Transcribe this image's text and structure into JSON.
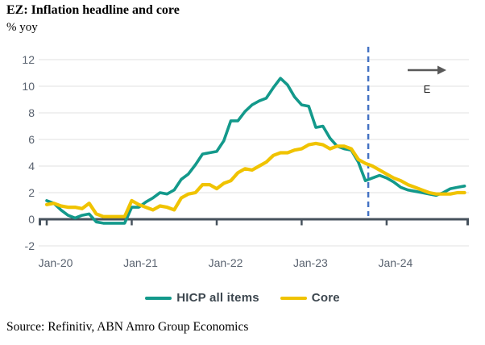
{
  "header": {
    "title": "EZ: Inflation headline and core",
    "unit_label": "% yoy"
  },
  "source": "Source: Refinitiv, ABN Amro Group Economics",
  "annotations": {
    "estimate_label": "E",
    "forecast_arrow_icon": "right-arrow"
  },
  "legend": [
    {
      "label": "HICP all items",
      "color": "#13998b"
    },
    {
      "label": "Core",
      "color": "#f0c300"
    }
  ],
  "colors": {
    "hicp_line": "#13998b",
    "core_line": "#f0c300",
    "axis": "#47525d",
    "grid": "#e7e7e7",
    "tick_label": "#5a6370",
    "forecast_divider": "#4472c4",
    "arrow": "#595959"
  },
  "chart_data": {
    "type": "line",
    "title": "EZ: Inflation headline and core",
    "ylabel": "% yoy",
    "ylim": [
      -2,
      13
    ],
    "y_ticks": [
      -2,
      0,
      2,
      4,
      6,
      8,
      10,
      12
    ],
    "grid": true,
    "legend_position": "bottom",
    "x_tick_labels": [
      "Jan-20",
      "Jan-21",
      "Jan-22",
      "Jan-23",
      "Jan-24"
    ],
    "x_labeled_indices": [
      0,
      12,
      24,
      36,
      48
    ],
    "forecast_divider_index": 45.4,
    "categories": [
      "Jan-20",
      "Feb-20",
      "Mar-20",
      "Apr-20",
      "May-20",
      "Jun-20",
      "Jul-20",
      "Aug-20",
      "Sep-20",
      "Oct-20",
      "Nov-20",
      "Dec-20",
      "Jan-21",
      "Feb-21",
      "Mar-21",
      "Apr-21",
      "May-21",
      "Jun-21",
      "Jul-21",
      "Aug-21",
      "Sep-21",
      "Oct-21",
      "Nov-21",
      "Dec-21",
      "Jan-22",
      "Feb-22",
      "Mar-22",
      "Apr-22",
      "May-22",
      "Jun-22",
      "Jul-22",
      "Aug-22",
      "Sep-22",
      "Oct-22",
      "Nov-22",
      "Dec-22",
      "Jan-23",
      "Feb-23",
      "Mar-23",
      "Apr-23",
      "May-23",
      "Jun-23",
      "Jul-23",
      "Aug-23",
      "Sep-23",
      "Oct-23",
      "Nov-23",
      "Dec-23",
      "Jan-24",
      "Feb-24",
      "Mar-24",
      "Apr-24",
      "May-24",
      "Jun-24",
      "Jul-24",
      "Aug-24",
      "Sep-24",
      "Oct-24",
      "Nov-24",
      "Dec-24"
    ],
    "series": [
      {
        "name": "HICP all items",
        "color": "#13998b",
        "values": [
          1.4,
          1.2,
          0.7,
          0.3,
          0.1,
          0.3,
          0.4,
          -0.2,
          -0.3,
          -0.3,
          -0.3,
          -0.3,
          0.9,
          0.9,
          1.3,
          1.6,
          2.0,
          1.9,
          2.2,
          3.0,
          3.4,
          4.1,
          4.9,
          5.0,
          5.1,
          5.9,
          7.4,
          7.4,
          8.1,
          8.6,
          8.9,
          9.1,
          9.9,
          10.6,
          10.1,
          9.2,
          8.6,
          8.5,
          6.9,
          7.0,
          6.1,
          5.5,
          5.3,
          5.2,
          4.3,
          2.9,
          3.1,
          3.3,
          3.1,
          2.8,
          2.4,
          2.2,
          2.1,
          2.0,
          1.9,
          1.8,
          2.0,
          2.3,
          2.4,
          2.5
        ]
      },
      {
        "name": "Core",
        "color": "#f0c300",
        "values": [
          1.1,
          1.2,
          1.0,
          0.9,
          0.9,
          0.8,
          1.2,
          0.4,
          0.2,
          0.2,
          0.2,
          0.2,
          1.4,
          1.1,
          0.9,
          0.7,
          1.0,
          0.9,
          0.7,
          1.6,
          1.9,
          2.0,
          2.6,
          2.6,
          2.3,
          2.7,
          2.9,
          3.5,
          3.8,
          3.7,
          4.0,
          4.3,
          4.8,
          5.0,
          5.0,
          5.2,
          5.3,
          5.6,
          5.7,
          5.6,
          5.3,
          5.5,
          5.5,
          5.3,
          4.5,
          4.2,
          4.0,
          3.7,
          3.4,
          3.1,
          2.9,
          2.6,
          2.4,
          2.2,
          2.0,
          1.9,
          1.9,
          1.9,
          2.0,
          2.0
        ]
      }
    ]
  }
}
